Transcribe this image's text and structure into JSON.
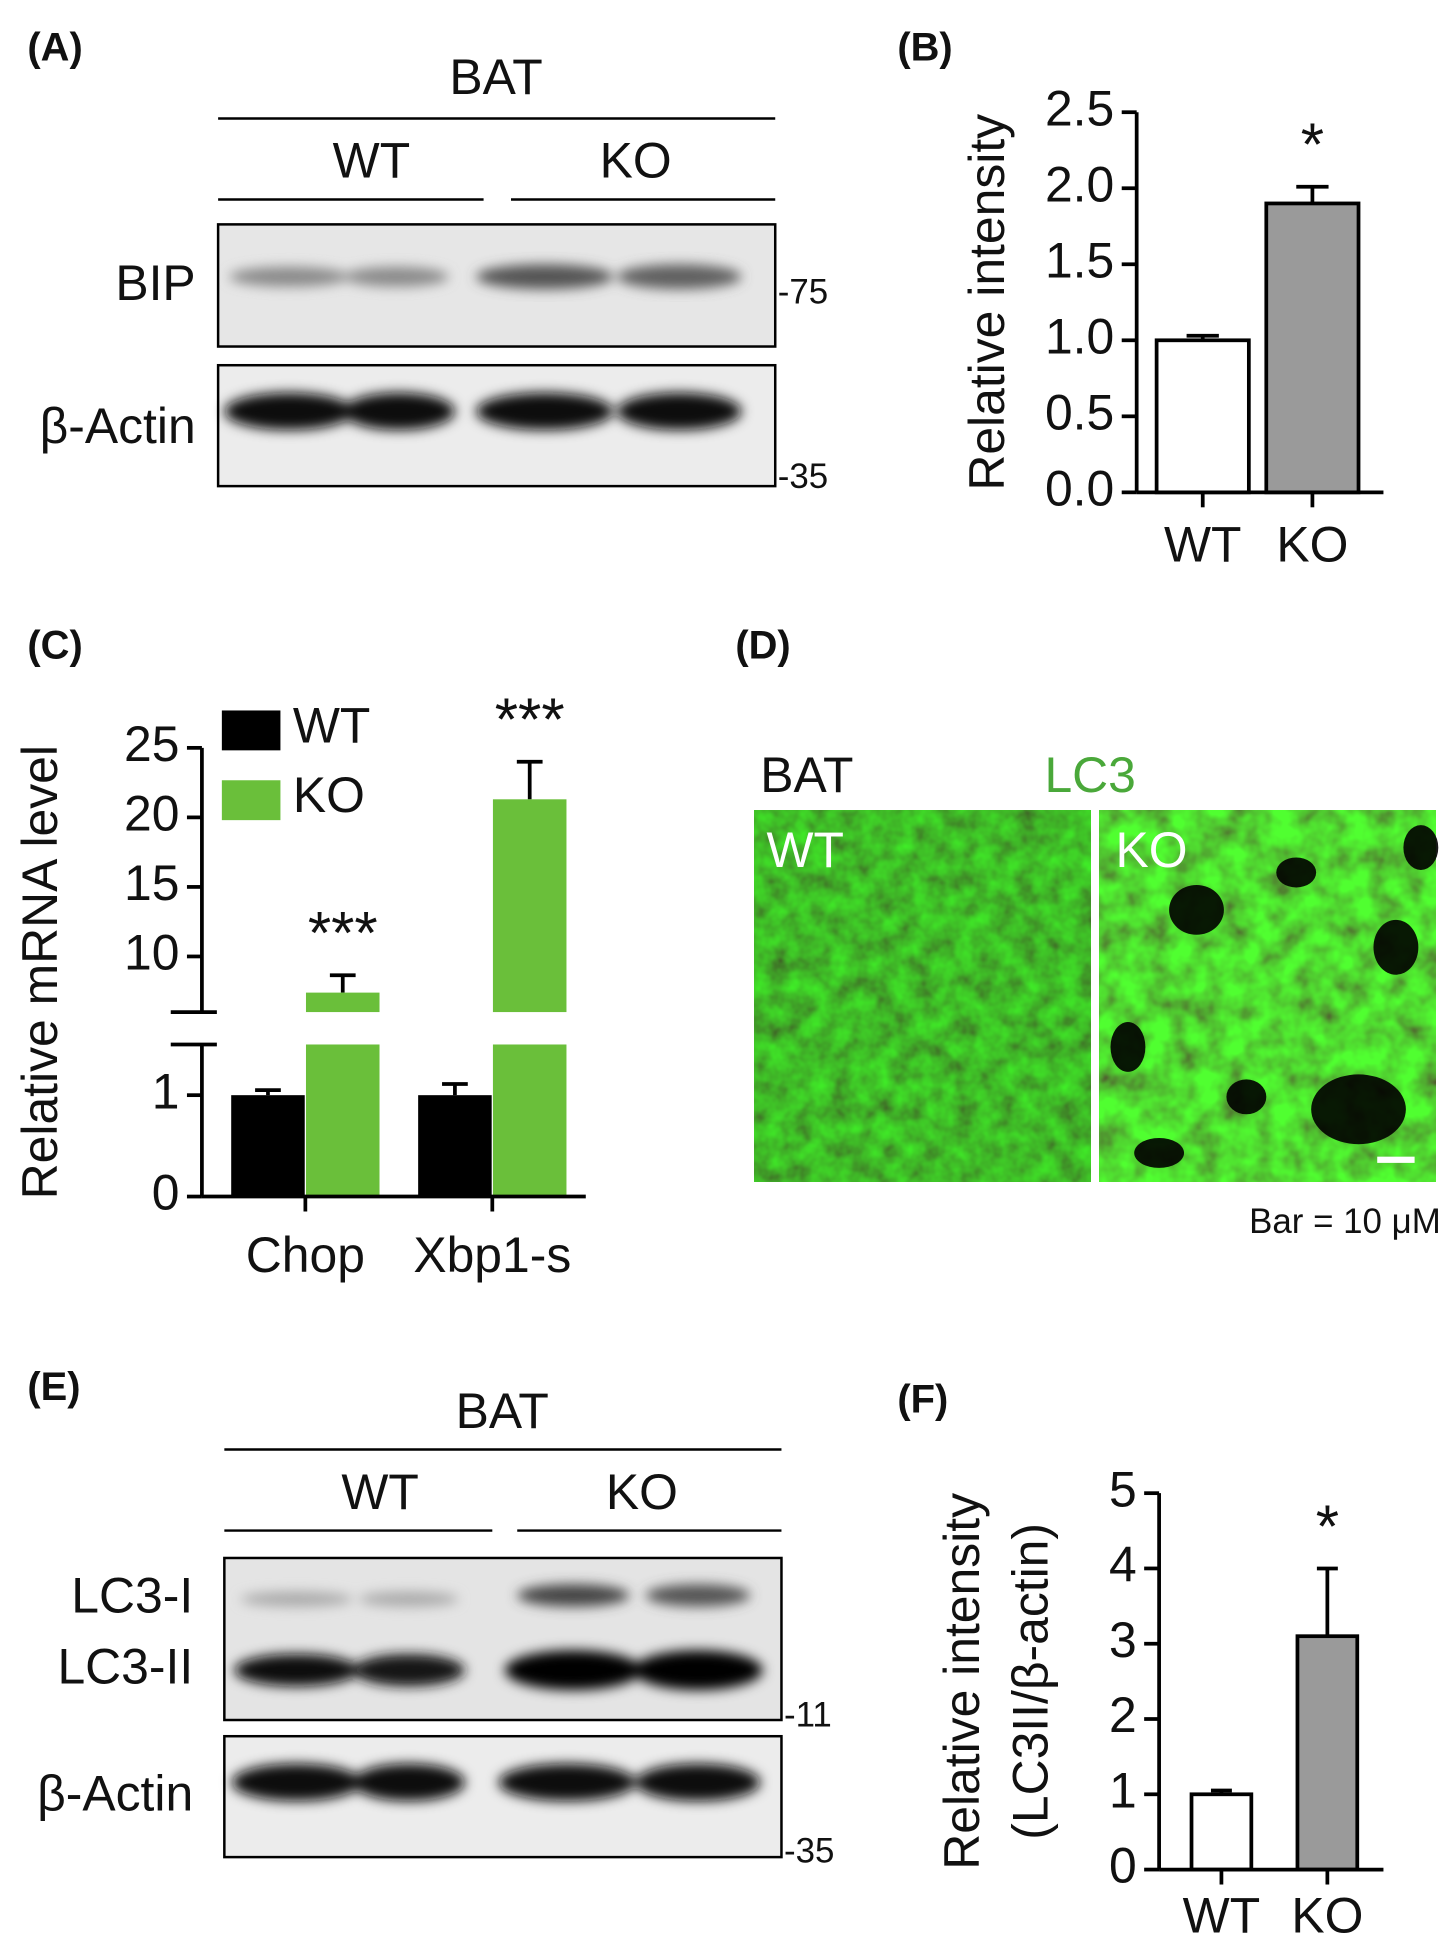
{
  "blot_a": {
    "label": "(A)",
    "tissue": "BAT",
    "groups": [
      "WT",
      "KO"
    ],
    "proteins": [
      "BIP",
      "β-Actin"
    ],
    "markers": [
      "-75",
      "-35"
    ]
  },
  "image_d": {
    "label": "(D)",
    "tissue": "BAT",
    "stain": "LC3",
    "panels": [
      "WT",
      "KO"
    ],
    "scale": "Bar = 10 μM"
  },
  "blot_e": {
    "label": "(E)",
    "tissue": "BAT",
    "groups": [
      "WT",
      "KO"
    ],
    "proteins": [
      "LC3-I",
      "LC3-II",
      "β-Actin"
    ],
    "markers": [
      "-11",
      "-35"
    ]
  },
  "chart_data": [
    {
      "type": "bar",
      "label": "(B)",
      "ylabel": [
        "Relative intensity"
      ],
      "categories": [
        "WT",
        "KO"
      ],
      "values": [
        1.0,
        1.9
      ],
      "errors": [
        0.03,
        0.11
      ],
      "colors": [
        "#ffffff",
        "#9a9a9a"
      ],
      "ylim": [
        0,
        2.5
      ],
      "yticks": [
        {
          "value": 0,
          "label": "0.0"
        },
        0.5,
        {
          "value": 1,
          "label": "1.0"
        },
        1.5,
        {
          "value": 2,
          "label": "2.0"
        },
        2.5
      ],
      "annotations": [
        {
          "text": "*",
          "category": "KO"
        }
      ]
    },
    {
      "type": "bar",
      "label": "(C)",
      "ylabel": [
        "Relative mRNA level"
      ],
      "categories": [
        "Chop",
        "Xbp1-s"
      ],
      "series": [
        {
          "name": "WT",
          "color": "#000000",
          "values": [
            1.0,
            1.0
          ],
          "errors": [
            0.05,
            0.11
          ]
        },
        {
          "name": "KO",
          "color": "#6abf3a",
          "values": [
            7.4,
            21.3
          ],
          "errors": [
            1.25,
            2.7
          ]
        }
      ],
      "ylim": [
        0,
        25
      ],
      "ybreak": [
        1.5,
        6
      ],
      "yticks": [
        0,
        1,
        10,
        15,
        20,
        25
      ],
      "legend": "top-left",
      "annotations": [
        {
          "text": "***",
          "category": "Chop",
          "series": "KO"
        },
        {
          "text": "***",
          "category": "Xbp1-s",
          "series": "KO"
        }
      ]
    },
    {
      "type": "bar",
      "label": "(F)",
      "ylabel": [
        "Relative intensity",
        "(LC3II/β-actin)"
      ],
      "categories": [
        "WT",
        "KO"
      ],
      "values": [
        1.0,
        3.1
      ],
      "errors": [
        0.05,
        0.9
      ],
      "colors": [
        "#ffffff",
        "#9a9a9a"
      ],
      "ylim": [
        0,
        5
      ],
      "yticks": [
        0,
        1,
        2,
        3,
        4,
        5
      ],
      "annotations": [
        {
          "text": "*",
          "category": "KO"
        }
      ]
    }
  ]
}
